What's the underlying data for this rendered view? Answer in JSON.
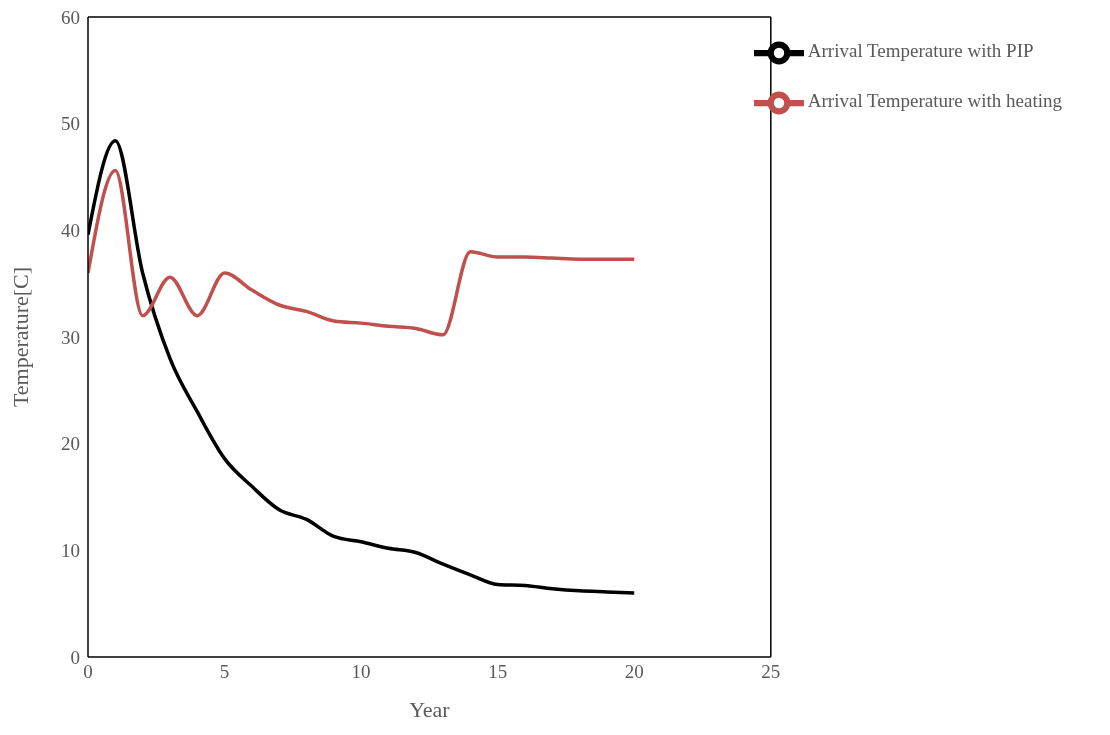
{
  "chart_data": {
    "type": "line",
    "xlabel": "Year",
    "ylabel": "Temperature[C]",
    "x": [
      0,
      1,
      2,
      3,
      4,
      5,
      6,
      7,
      8,
      9,
      10,
      11,
      12,
      13,
      14,
      15,
      16,
      17,
      18,
      19,
      20
    ],
    "series": [
      {
        "name": "Arrival Temperature with PIP",
        "color": "#000000",
        "values": [
          39.6,
          48.4,
          36.0,
          28.0,
          23.0,
          18.6,
          16.0,
          13.8,
          12.9,
          11.3,
          10.8,
          10.2,
          9.8,
          8.7,
          7.7,
          6.8,
          6.7,
          6.4,
          6.2,
          6.1,
          6.0
        ]
      },
      {
        "name": "Arrival Temperature with heating",
        "color": "#c0504d",
        "values": [
          36.0,
          45.6,
          32.0,
          35.6,
          32.0,
          36.0,
          34.4,
          33.0,
          32.4,
          31.5,
          31.3,
          31.0,
          30.8,
          30.2,
          38.0,
          37.5,
          37.5,
          37.4,
          37.3,
          37.3,
          37.3
        ]
      }
    ],
    "xlim": [
      0,
      25
    ],
    "xticks": [
      0,
      5,
      10,
      15,
      20,
      25
    ],
    "ylim": [
      0,
      60
    ],
    "yticks": [
      0,
      10,
      20,
      30,
      40,
      50,
      60
    ],
    "grid": false,
    "legend": "top right",
    "marker": "none",
    "line_style": "solid"
  }
}
